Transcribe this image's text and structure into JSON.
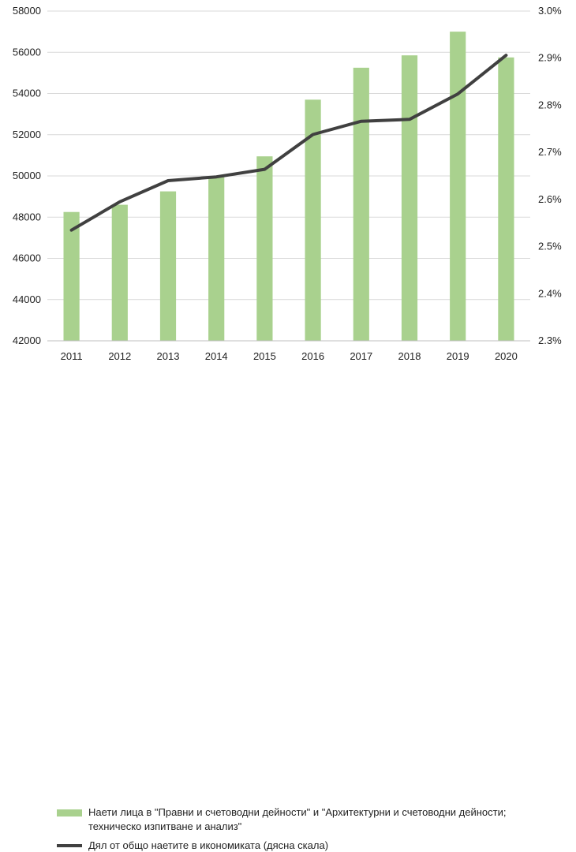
{
  "chart_data": {
    "type": "bar+line",
    "categories": [
      "2011",
      "2012",
      "2013",
      "2014",
      "2015",
      "2016",
      "2017",
      "2018",
      "2019",
      "2020"
    ],
    "series": [
      {
        "name": "Наети лица в \"Правни и счетоводни дейности\" и \"Архитектурни и счетоводни дейности; техническо изпитване и анализ\"",
        "type": "bar",
        "axis": "left",
        "color": "#a9d18e",
        "values": [
          48250,
          48600,
          49250,
          49950,
          50950,
          53700,
          55250,
          55850,
          57000,
          55750
        ]
      },
      {
        "name": "Дял от общо наетите в икономиката (дясна скала)",
        "type": "line",
        "axis": "right",
        "color": "#404040",
        "values": [
          2.535,
          2.595,
          2.64,
          2.648,
          2.664,
          2.738,
          2.766,
          2.77,
          2.824,
          2.906
        ]
      }
    ],
    "y_left": {
      "min": 42000,
      "max": 58000,
      "ticks": [
        "42000",
        "44000",
        "46000",
        "48000",
        "50000",
        "52000",
        "54000",
        "56000",
        "58000"
      ]
    },
    "y_right": {
      "min": 2.3,
      "max": 3.0,
      "ticks": [
        "2.3%",
        "2.4%",
        "2.5%",
        "2.6%",
        "2.7%",
        "2.8%",
        "2.9%",
        "3.0%"
      ]
    },
    "grid": true,
    "legend_position": "bottom"
  },
  "legend": {
    "bar_line1": "Наети лица в \"Правни и счетоводни дейности\" и \"Архитектурни и счетоводни дейности;",
    "bar_line2": "техническо изпитване и анализ\"",
    "line_label": "Дял от общо наетите в икономиката (дясна скала)"
  }
}
